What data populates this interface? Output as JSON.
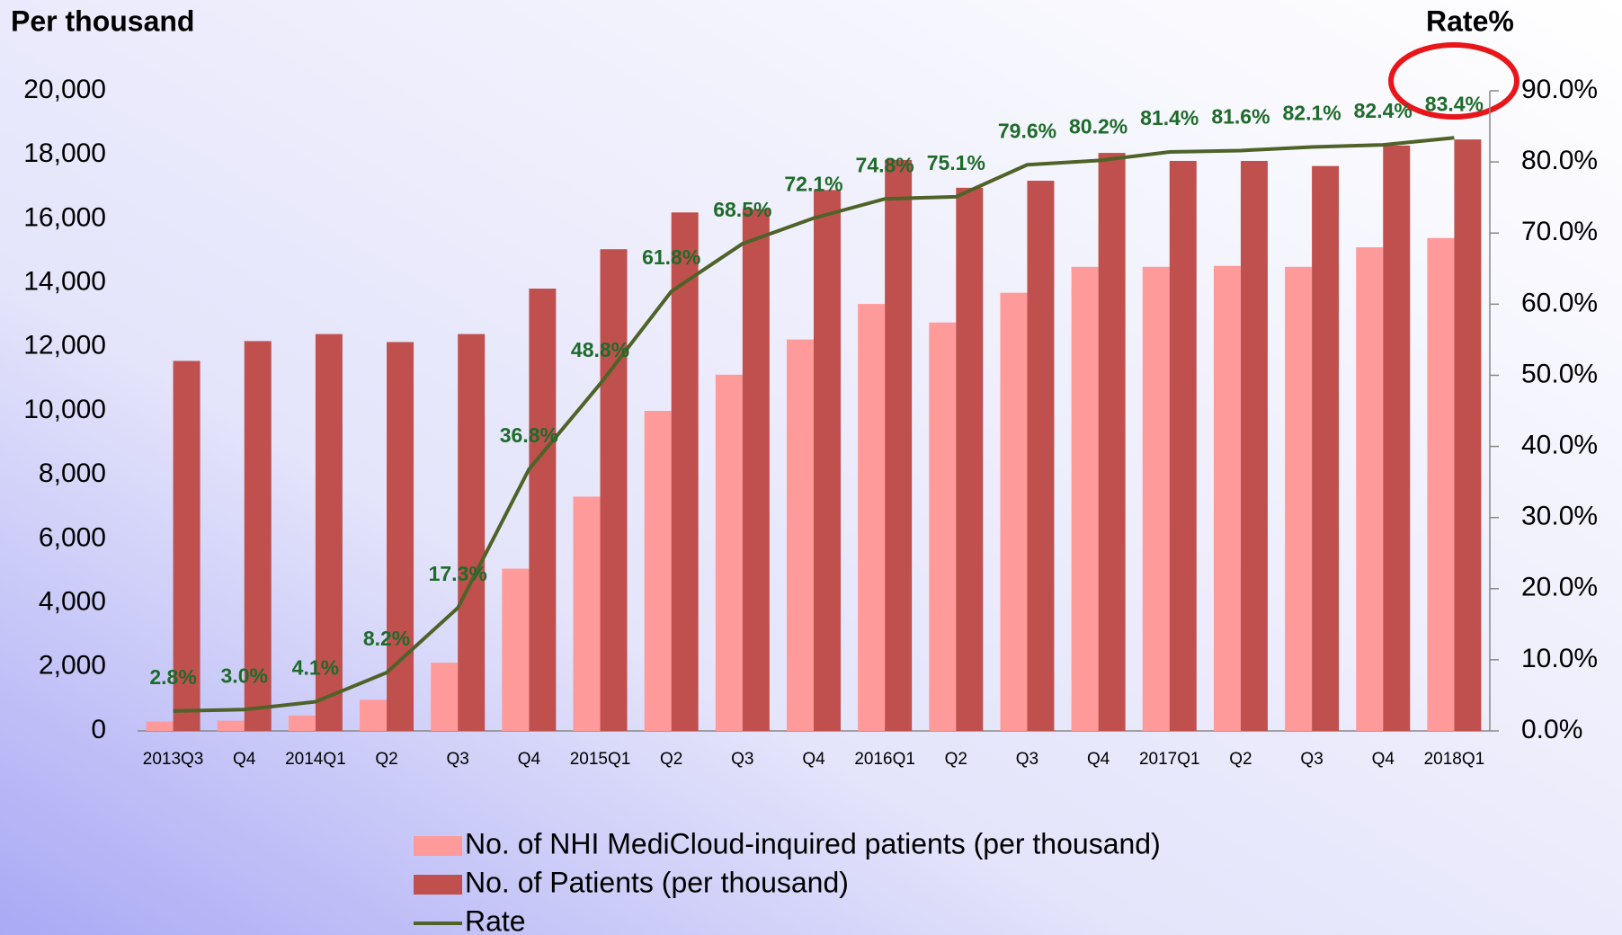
{
  "chart_data": {
    "type": "bar_line",
    "title": "Per thousand",
    "y2_title": "Rate%",
    "categories": [
      "2013Q3",
      "Q4",
      "2014Q1",
      "Q2",
      "Q3",
      "Q4",
      "2015Q1",
      "Q2",
      "Q3",
      "Q4",
      "2016Q1",
      "Q2",
      "Q3",
      "Q4",
      "2017Q1",
      "Q2",
      "Q3",
      "Q4",
      "2018Q1"
    ],
    "series": [
      {
        "name": "No. of NHI MediCloud-inquired patients (per thousand)",
        "type": "bar",
        "color": "#ff9a9a",
        "values": [
          290,
          320,
          480,
          970,
          2130,
          5070,
          7320,
          10000,
          11130,
          12230,
          13340,
          12760,
          13690,
          14500,
          14500,
          14530,
          14500,
          15110,
          15400
        ]
      },
      {
        "name": "No. of Patients (per thousand)",
        "type": "bar",
        "color": "#c0504d",
        "values": [
          11560,
          12180,
          12400,
          12150,
          12400,
          13820,
          15050,
          16200,
          16300,
          16900,
          17840,
          16970,
          17190,
          18060,
          17810,
          17810,
          17650,
          18290,
          18480
        ]
      },
      {
        "name": "Rate",
        "type": "line",
        "color": "#4f6228",
        "axis": "y2",
        "values": [
          2.8,
          3.0,
          4.1,
          8.2,
          17.3,
          36.8,
          48.8,
          61.8,
          68.5,
          72.1,
          74.8,
          75.1,
          79.6,
          80.2,
          81.4,
          81.6,
          82.1,
          82.4,
          83.4
        ],
        "value_labels": [
          "2.8%",
          "3.0%",
          "4.1%",
          "8.2%",
          "17.3%",
          "36.8%",
          "48.8%",
          "61.8%",
          "68.5%",
          "72.1%",
          "74.8%",
          "75.1%",
          "79.6%",
          "80.2%",
          "81.4%",
          "81.6%",
          "82.1%",
          "82.4%",
          "83.4%"
        ]
      }
    ],
    "ylim": [
      0,
      20000
    ],
    "yticks": [
      0,
      {
        "value": 2000,
        "label": "2,000"
      },
      {
        "value": 4000,
        "label": "4,000"
      },
      {
        "value": 6000,
        "label": "6,000"
      },
      {
        "value": 8000,
        "label": "8,000"
      },
      {
        "value": 10000,
        "label": "10,000"
      },
      {
        "value": 12000,
        "label": "12,000"
      },
      {
        "value": 14000,
        "label": "14,000"
      },
      {
        "value": 16000,
        "label": "16,000"
      },
      {
        "value": 18000,
        "label": "18,000"
      },
      {
        "value": 20000,
        "label": "20,000"
      }
    ],
    "y2lim": [
      0,
      90
    ],
    "y2ticks": [
      {
        "value": 0,
        "label": "0.0%"
      },
      {
        "value": 10,
        "label": "10.0%"
      },
      {
        "value": 20,
        "label": "20.0%"
      },
      {
        "value": 30,
        "label": "30.0%"
      },
      {
        "value": 40,
        "label": "40.0%"
      },
      {
        "value": 50,
        "label": "50.0%"
      },
      {
        "value": 60,
        "label": "60.0%"
      },
      {
        "value": 70,
        "label": "70.0%"
      },
      {
        "value": 80,
        "label": "80.0%"
      },
      {
        "value": 90,
        "label": "90.0%"
      }
    ]
  }
}
